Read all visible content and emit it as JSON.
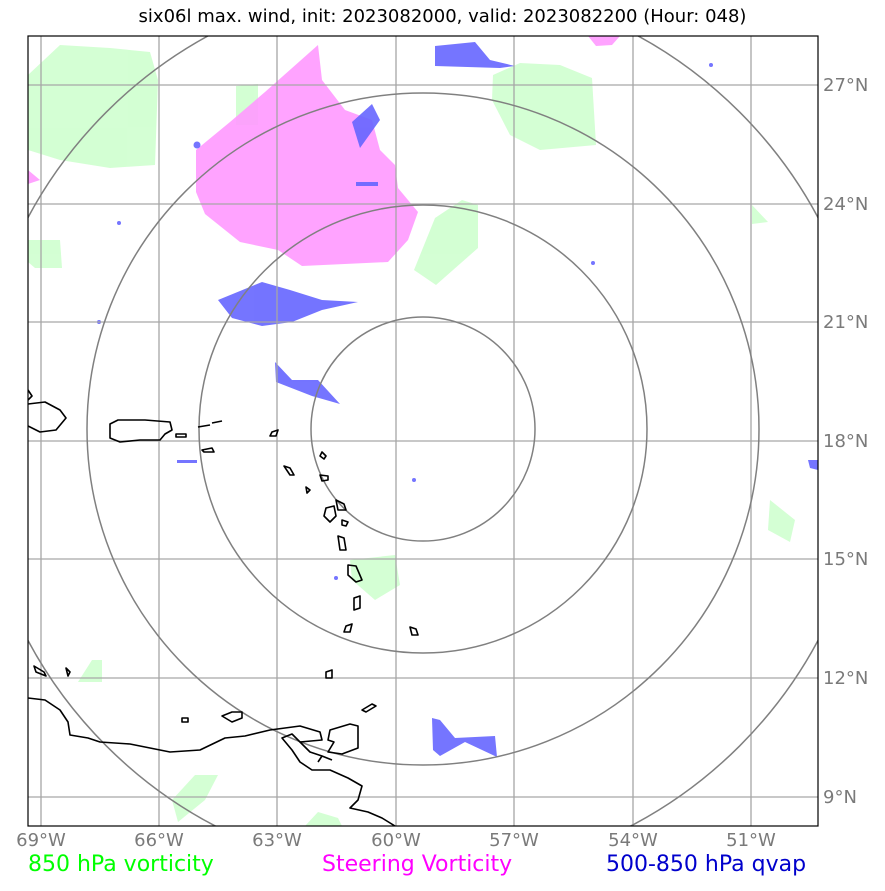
{
  "title": "six06l max. wind, init: 2023082000, valid: 2023082200 (Hour: 048)",
  "legend": [
    {
      "label": "850 hPa vorticity",
      "color": "#00ff00"
    },
    {
      "label": "Steering Vorticity",
      "color": "#ff00ff"
    },
    {
      "label": "500-850 hPa qvap",
      "color": "#0000cc"
    }
  ],
  "map": {
    "lon_ticks": [
      "69°W",
      "66°W",
      "63°W",
      "60°W",
      "57°W",
      "54°W",
      "51°W"
    ],
    "lat_ticks": [
      "27°N",
      "24°N",
      "21°N",
      "18°N",
      "15°N",
      "12°N",
      "9°N"
    ],
    "range_rings": 4,
    "colors": {
      "grid": "#a6a6a6",
      "rings": "#808080",
      "coast": "#000000",
      "vort850": "#ccffcc",
      "steering": "#ff99ff",
      "qvap": "#6666ff"
    }
  }
}
